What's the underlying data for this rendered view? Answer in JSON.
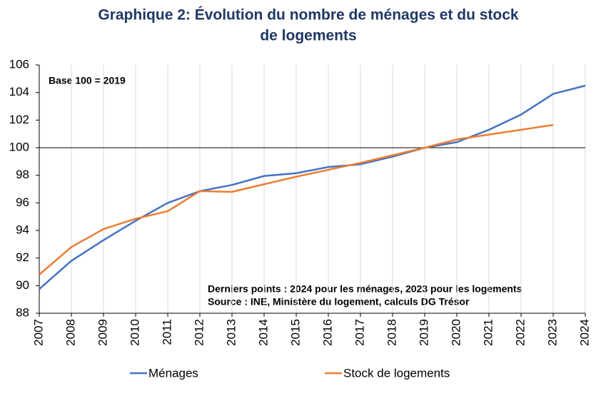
{
  "chart_data": {
    "type": "line",
    "title": [
      "Graphique 2: Évolution du nombre de ménages et du stock",
      "de logements"
    ],
    "annotations": [
      "Base 100 = 2019",
      "Derniers points : 2024 pour les ménages, 2023 pour les logements",
      "Source : INE, Ministère du logement, calculs DG Trésor"
    ],
    "x": [
      2007,
      2008,
      2009,
      2010,
      2011,
      2012,
      2013,
      2014,
      2015,
      2016,
      2017,
      2018,
      2019,
      2020,
      2021,
      2022,
      2023,
      2024
    ],
    "series": [
      {
        "name": "Ménages",
        "color": "#4472c4",
        "values": [
          89.75,
          91.8,
          93.3,
          94.7,
          96.0,
          96.85,
          97.3,
          97.95,
          98.15,
          98.6,
          98.8,
          99.35,
          100.0,
          100.4,
          101.3,
          102.4,
          103.9,
          104.5
        ]
      },
      {
        "name": "Stock de logements",
        "color": "#ed7d31",
        "values": [
          90.8,
          92.8,
          94.1,
          94.85,
          95.4,
          96.85,
          96.8,
          97.35,
          97.9,
          98.4,
          98.9,
          99.45,
          100.0,
          100.6,
          100.95,
          101.3,
          101.65,
          null
        ]
      }
    ],
    "xlim": [
      2007,
      2024
    ],
    "xticks": [
      2007,
      2008,
      2009,
      2010,
      2011,
      2012,
      2013,
      2014,
      2015,
      2016,
      2017,
      2018,
      2019,
      2020,
      2021,
      2022,
      2023,
      2024
    ],
    "ylim": [
      88,
      106
    ],
    "yticks": [
      88,
      90,
      92,
      94,
      96,
      98,
      100,
      102,
      104,
      106
    ],
    "reference_line": 100,
    "grid": "x"
  }
}
